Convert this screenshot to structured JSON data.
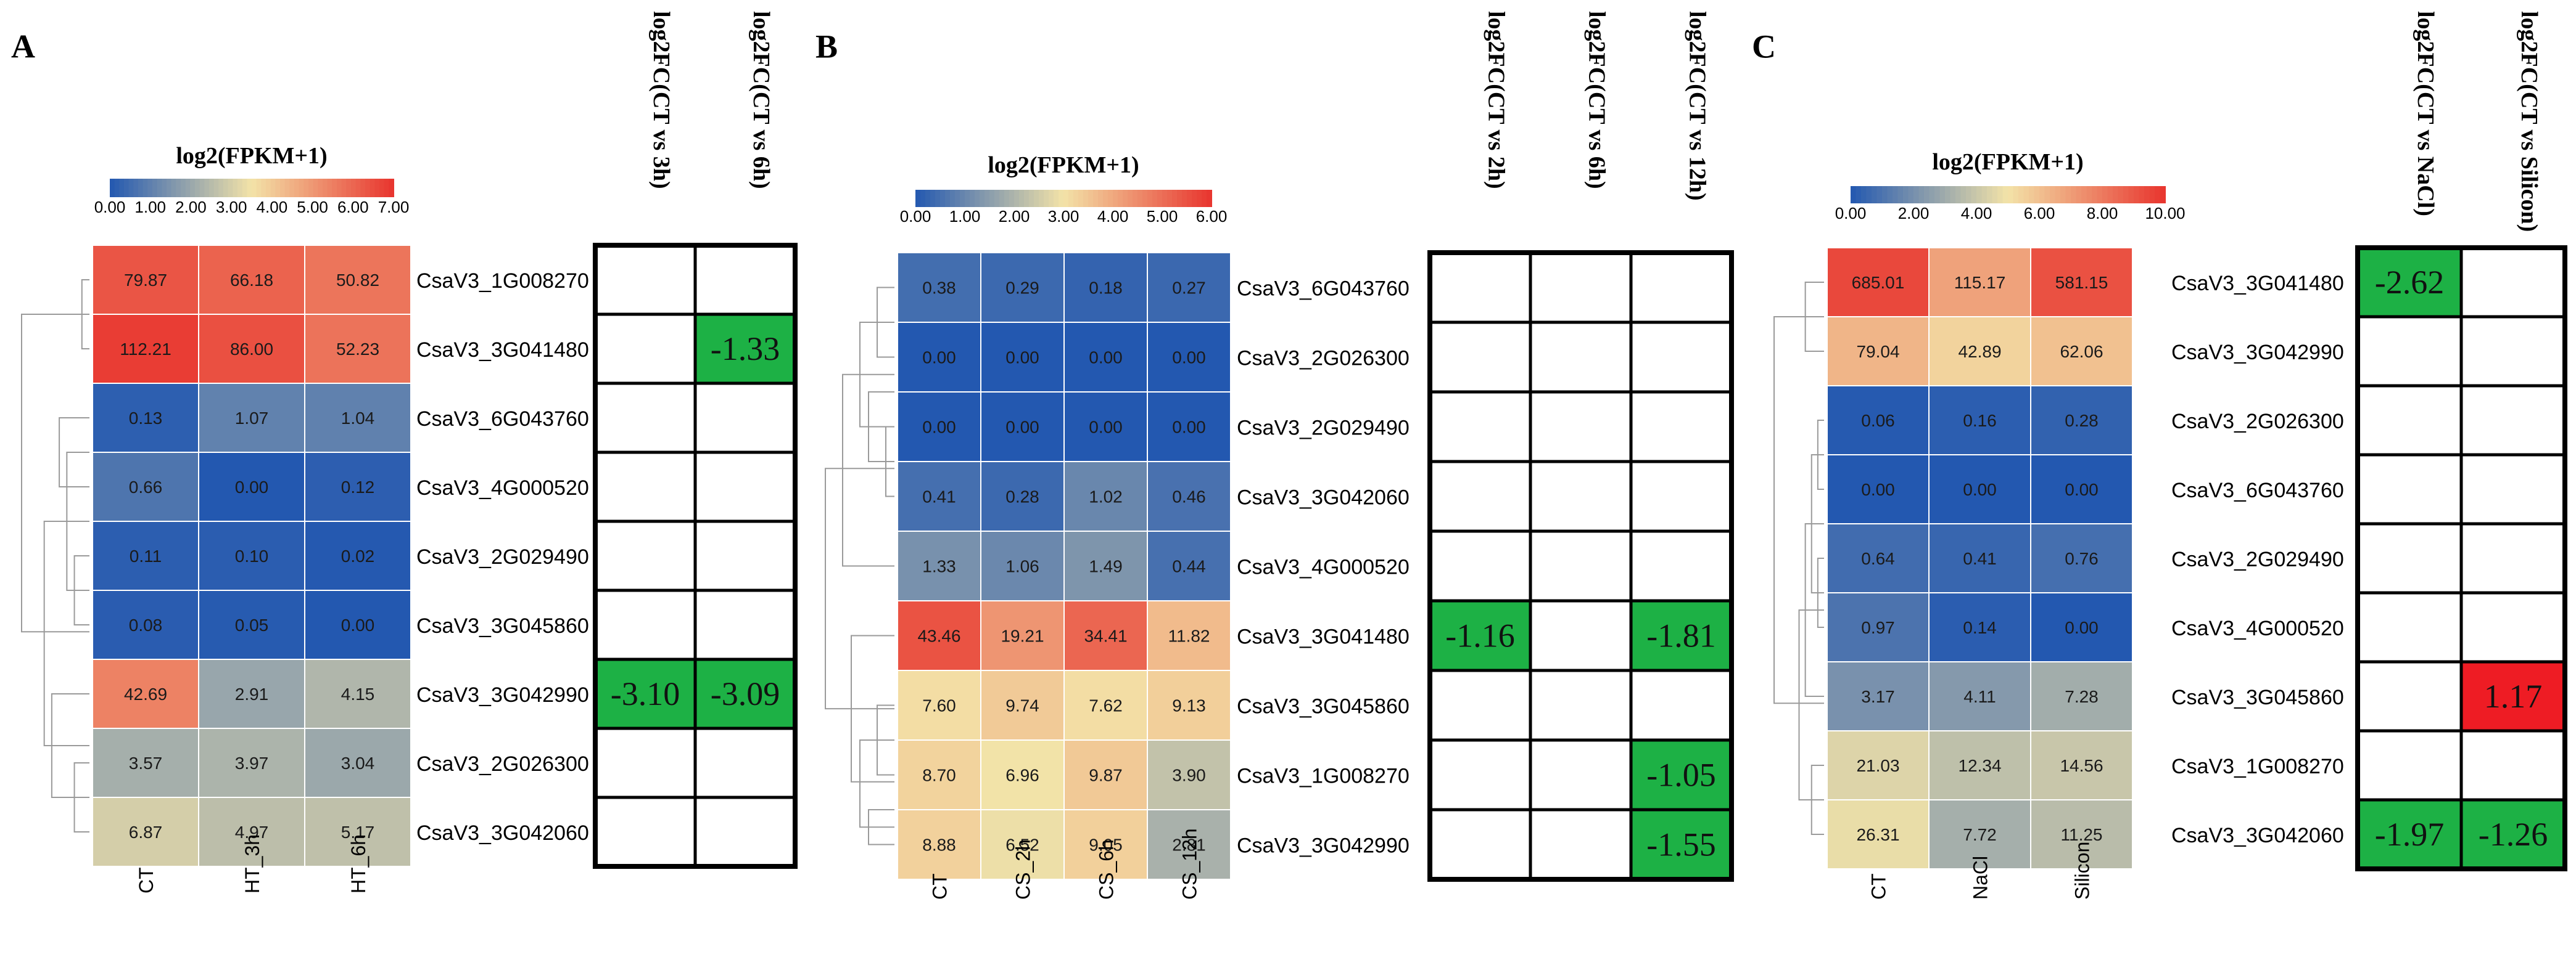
{
  "chart_data": [
    {
      "type": "heatmap",
      "panel_label": "A",
      "colorbar": {
        "title": "log2(FPKM+1)",
        "ticks": [
          "0.00",
          "1.00",
          "2.00",
          "3.00",
          "4.00",
          "5.00",
          "6.00",
          "7.00"
        ],
        "min": 0,
        "max": 7
      },
      "columns": [
        "CT",
        "HT_3h",
        "HT_6h"
      ],
      "rows": [
        "CsaV3_1G008270",
        "CsaV3_3G041480",
        "CsaV3_6G043760",
        "CsaV3_4G000520",
        "CsaV3_2G029490",
        "CsaV3_3G045860",
        "CsaV3_3G042990",
        "CsaV3_2G026300",
        "CsaV3_3G042060"
      ],
      "values": [
        [
          "79.87",
          "66.18",
          "50.82"
        ],
        [
          "112.21",
          "86.00",
          "52.23"
        ],
        [
          "0.13",
          "1.07",
          "1.04"
        ],
        [
          "0.66",
          "0.00",
          "0.12"
        ],
        [
          "0.11",
          "0.10",
          "0.02"
        ],
        [
          "0.08",
          "0.05",
          "0.00"
        ],
        [
          "42.69",
          "2.91",
          "4.15"
        ],
        [
          "3.57",
          "3.97",
          "3.04"
        ],
        [
          "6.87",
          "4.97",
          "5.17"
        ]
      ],
      "fc_headers": [
        "log2FC(CT vs 3h)",
        "log2FC(CT vs 6h)"
      ],
      "fc_values": [
        [
          "",
          ""
        ],
        [
          "",
          "-1.33"
        ],
        [
          "",
          ""
        ],
        [
          "",
          ""
        ],
        [
          "",
          ""
        ],
        [
          "",
          ""
        ],
        [
          "-3.10",
          "-3.09"
        ],
        [
          "",
          ""
        ],
        [
          "",
          ""
        ]
      ]
    },
    {
      "type": "heatmap",
      "panel_label": "B",
      "colorbar": {
        "title": "log2(FPKM+1)",
        "ticks": [
          "0.00",
          "1.00",
          "2.00",
          "3.00",
          "4.00",
          "5.00",
          "6.00"
        ],
        "min": 0,
        "max": 6
      },
      "columns": [
        "CT",
        "CS_2h",
        "CS_6h",
        "CS_12h"
      ],
      "rows": [
        "CsaV3_6G043760",
        "CsaV3_2G026300",
        "CsaV3_2G029490",
        "CsaV3_3G042060",
        "CsaV3_4G000520",
        "CsaV3_3G041480",
        "CsaV3_3G045860",
        "CsaV3_1G008270",
        "CsaV3_3G042990"
      ],
      "values": [
        [
          "0.38",
          "0.29",
          "0.18",
          "0.27"
        ],
        [
          "0.00",
          "0.00",
          "0.00",
          "0.00"
        ],
        [
          "0.00",
          "0.00",
          "0.00",
          "0.00"
        ],
        [
          "0.41",
          "0.28",
          "1.02",
          "0.46"
        ],
        [
          "1.33",
          "1.06",
          "1.49",
          "0.44"
        ],
        [
          "43.46",
          "19.21",
          "34.41",
          "11.82"
        ],
        [
          "7.60",
          "9.74",
          "7.62",
          "9.13"
        ],
        [
          "8.70",
          "6.96",
          "9.87",
          "3.90"
        ],
        [
          "8.88",
          "6.52",
          "9.05",
          "2.81"
        ]
      ],
      "fc_headers": [
        "log2FC(CT vs 2h)",
        "log2FC(CT vs 6h)",
        "log2FC(CT vs 12h)"
      ],
      "fc_values": [
        [
          "",
          "",
          ""
        ],
        [
          "",
          "",
          ""
        ],
        [
          "",
          "",
          ""
        ],
        [
          "",
          "",
          ""
        ],
        [
          "",
          "",
          ""
        ],
        [
          "-1.16",
          "",
          "-1.81"
        ],
        [
          "",
          "",
          ""
        ],
        [
          "",
          "",
          "-1.05"
        ],
        [
          "",
          "",
          "-1.55"
        ]
      ]
    },
    {
      "type": "heatmap",
      "panel_label": "C",
      "colorbar": {
        "title": "log2(FPKM+1)",
        "ticks": [
          "0.00",
          "2.00",
          "4.00",
          "6.00",
          "8.00",
          "10.00"
        ],
        "min": 0,
        "max": 10
      },
      "columns": [
        "CT",
        "NaCl",
        "Silicon"
      ],
      "rows": [
        "CsaV3_3G041480",
        "CsaV3_3G042990",
        "CsaV3_2G026300",
        "CsaV3_6G043760",
        "CsaV3_2G029490",
        "CsaV3_4G000520",
        "CsaV3_3G045860",
        "CsaV3_1G008270",
        "CsaV3_3G042060"
      ],
      "values": [
        [
          "685.01",
          "115.17",
          "581.15"
        ],
        [
          "79.04",
          "42.89",
          "62.06"
        ],
        [
          "0.06",
          "0.16",
          "0.28"
        ],
        [
          "0.00",
          "0.00",
          "0.00"
        ],
        [
          "0.64",
          "0.41",
          "0.76"
        ],
        [
          "0.97",
          "0.14",
          "0.00"
        ],
        [
          "3.17",
          "4.11",
          "7.28"
        ],
        [
          "21.03",
          "12.34",
          "14.56"
        ],
        [
          "26.31",
          "7.72",
          "11.25"
        ]
      ],
      "fc_headers": [
        "log2FC(CT vs NaCl)",
        "log2FC(CT vs Silicon)"
      ],
      "fc_values": [
        [
          "-2.62",
          ""
        ],
        [
          "",
          ""
        ],
        [
          "",
          ""
        ],
        [
          "",
          ""
        ],
        [
          "",
          ""
        ],
        [
          "",
          ""
        ],
        [
          "",
          "1.17"
        ],
        [
          "",
          ""
        ],
        [
          "-1.97",
          "-1.26"
        ]
      ]
    }
  ],
  "colors": {
    "scale_low": "#2358b0",
    "scale_mid": "#f3e3a8",
    "scale_high": "#e8342e",
    "fc_down": "#1db145",
    "fc_up": "#ee1c24"
  }
}
